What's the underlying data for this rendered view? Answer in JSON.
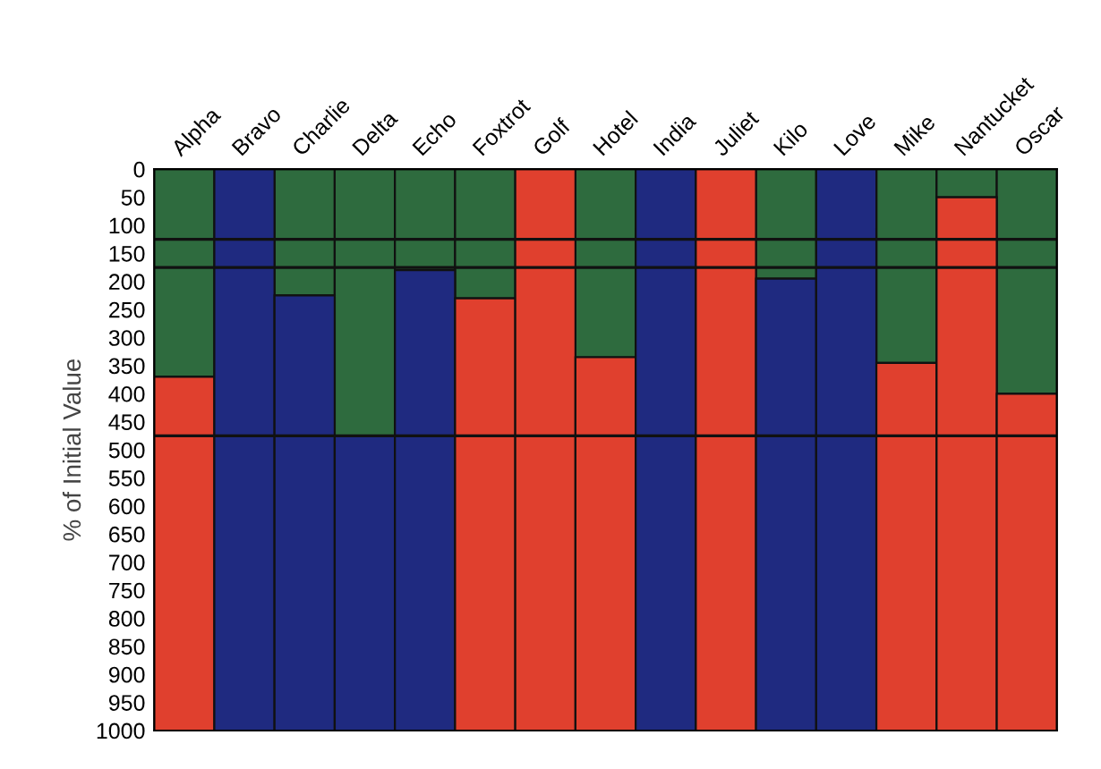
{
  "chart_data": {
    "type": "bar",
    "stacked": true,
    "ylabel": "% of Initial Value",
    "categories": [
      "Alpha",
      "Bravo",
      "Charlie",
      "Delta",
      "Echo",
      "Foxtrot",
      "Golf",
      "Hotel",
      "India",
      "Juliet",
      "Kilo",
      "Love",
      "Mike",
      "Nantucket",
      "Oscar"
    ],
    "series": [
      {
        "color": "#2e6b3e",
        "values": [
          370,
          0,
          225,
          475,
          180,
          230,
          0,
          335,
          0,
          0,
          195,
          0,
          345,
          50,
          400
        ]
      },
      {
        "colors": [
          "#e0402e",
          "#1f2a80",
          "#1f2a80",
          "#1f2a80",
          "#1f2a80",
          "#e0402e",
          "#e0402e",
          "#e0402e",
          "#1f2a80",
          "#e0402e",
          "#1f2a80",
          "#1f2a80",
          "#e0402e",
          "#e0402e",
          "#e0402e"
        ],
        "values": [
          630,
          1000,
          775,
          525,
          820,
          770,
          1000,
          665,
          1000,
          1000,
          805,
          1000,
          655,
          950,
          600
        ]
      }
    ],
    "ylim": [
      1000,
      0
    ],
    "yticks": [
      0,
      50,
      100,
      150,
      200,
      250,
      300,
      350,
      400,
      450,
      500,
      550,
      600,
      650,
      700,
      750,
      800,
      850,
      900,
      950,
      1000
    ],
    "ref_lines": [
      {
        "axis": "y",
        "value": 125,
        "color": "#111111"
      },
      {
        "axis": "y",
        "value": 175,
        "color": "#111111"
      },
      {
        "axis": "y",
        "value": 475,
        "color": "#111111"
      }
    ],
    "grid": false
  }
}
